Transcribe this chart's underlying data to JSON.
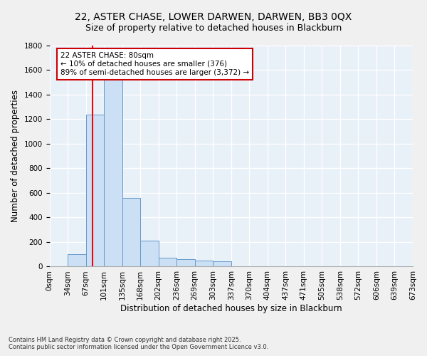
{
  "title1": "22, ASTER CHASE, LOWER DARWEN, DARWEN, BB3 0QX",
  "title2": "Size of property relative to detached houses in Blackburn",
  "xlabel": "Distribution of detached houses by size in Blackburn",
  "ylabel": "Number of detached properties",
  "bins": [
    "0sqm",
    "34sqm",
    "67sqm",
    "101sqm",
    "135sqm",
    "168sqm",
    "202sqm",
    "236sqm",
    "269sqm",
    "303sqm",
    "337sqm",
    "370sqm",
    "404sqm",
    "437sqm",
    "471sqm",
    "505sqm",
    "538sqm",
    "572sqm",
    "606sqm",
    "639sqm",
    "673sqm"
  ],
  "counts": [
    0,
    100,
    1240,
    1520,
    560,
    210,
    75,
    60,
    50,
    45,
    0,
    0,
    0,
    0,
    0,
    0,
    0,
    0,
    0,
    0
  ],
  "bar_color": "#cce0f5",
  "bar_edge_color": "#6699cc",
  "annotation_text": "22 ASTER CHASE: 80sqm\n← 10% of detached houses are smaller (376)\n89% of semi-detached houses are larger (3,372) →",
  "annotation_box_color": "#ffffff",
  "annotation_box_edge": "#cc0000",
  "ylim": [
    0,
    1800
  ],
  "yticks": [
    0,
    200,
    400,
    600,
    800,
    1000,
    1200,
    1400,
    1600,
    1800
  ],
  "background_color": "#e8f0f8",
  "fig_background": "#f0f0f0",
  "grid_color": "#ffffff",
  "footer1": "Contains HM Land Registry data © Crown copyright and database right 2025.",
  "footer2": "Contains public sector information licensed under the Open Government Licence v3.0.",
  "title_fontsize": 10,
  "subtitle_fontsize": 9,
  "tick_fontsize": 7.5,
  "label_fontsize": 8.5,
  "footer_fontsize": 6
}
